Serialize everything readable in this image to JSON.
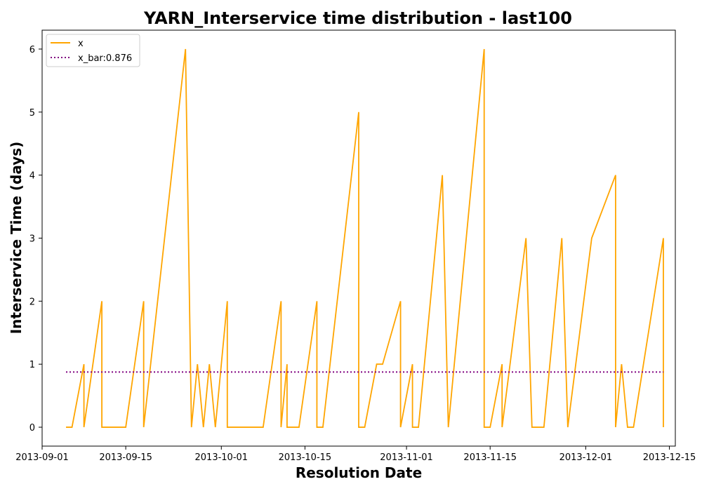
{
  "chart_data": {
    "type": "line",
    "title": "YARN_Interservice time distribution - last100",
    "xlabel": "Resolution Date",
    "ylabel": "Interservice Time (days)",
    "x_type": "date",
    "xlim": [
      "2013-09-01",
      "2013-12-16"
    ],
    "ylim": [
      -0.3,
      6.3
    ],
    "x_ticks": [
      "2013-09-01",
      "2013-09-15",
      "2013-10-01",
      "2013-10-15",
      "2013-11-01",
      "2013-11-15",
      "2013-12-01",
      "2013-12-15"
    ],
    "y_ticks": [
      0,
      1,
      2,
      3,
      4,
      5,
      6
    ],
    "grid": false,
    "legend_position": "top-left",
    "series": [
      {
        "name": "x",
        "color": "#FFA500",
        "style": "solid",
        "points": [
          [
            "2013-09-05",
            0
          ],
          [
            "2013-09-06",
            0
          ],
          [
            "2013-09-08",
            1
          ],
          [
            "2013-09-08",
            0
          ],
          [
            "2013-09-11",
            2
          ],
          [
            "2013-09-11",
            0
          ],
          [
            "2013-09-15",
            0
          ],
          [
            "2013-09-18",
            2
          ],
          [
            "2013-09-18",
            0
          ],
          [
            "2013-09-18",
            0
          ],
          [
            "2013-09-25",
            6
          ],
          [
            "2013-09-26",
            0
          ],
          [
            "2013-09-27",
            1
          ],
          [
            "2013-09-28",
            0
          ],
          [
            "2013-09-29",
            1
          ],
          [
            "2013-09-30",
            0
          ],
          [
            "2013-10-02",
            2
          ],
          [
            "2013-10-02",
            0
          ],
          [
            "2013-10-08",
            0
          ],
          [
            "2013-10-11",
            2
          ],
          [
            "2013-10-11",
            0
          ],
          [
            "2013-10-12",
            1
          ],
          [
            "2013-10-12",
            0
          ],
          [
            "2013-10-14",
            0
          ],
          [
            "2013-10-17",
            2
          ],
          [
            "2013-10-17",
            0
          ],
          [
            "2013-10-18",
            0
          ],
          [
            "2013-10-24",
            5
          ],
          [
            "2013-10-24",
            0
          ],
          [
            "2013-10-25",
            0
          ],
          [
            "2013-10-27",
            1
          ],
          [
            "2013-10-28",
            1
          ],
          [
            "2013-10-31",
            2
          ],
          [
            "2013-10-31",
            0
          ],
          [
            "2013-11-02",
            1
          ],
          [
            "2013-11-02",
            0
          ],
          [
            "2013-11-03",
            0
          ],
          [
            "2013-11-07",
            4
          ],
          [
            "2013-11-08",
            0
          ],
          [
            "2013-11-14",
            6
          ],
          [
            "2013-11-14",
            0
          ],
          [
            "2013-11-15",
            0
          ],
          [
            "2013-11-17",
            1
          ],
          [
            "2013-11-17",
            0
          ],
          [
            "2013-11-21",
            3
          ],
          [
            "2013-11-22",
            0
          ],
          [
            "2013-11-24",
            0
          ],
          [
            "2013-11-27",
            3
          ],
          [
            "2013-11-28",
            0
          ],
          [
            "2013-12-02",
            3
          ],
          [
            "2013-12-06",
            4
          ],
          [
            "2013-12-06",
            0
          ],
          [
            "2013-12-07",
            1
          ],
          [
            "2013-12-08",
            0
          ],
          [
            "2013-12-09",
            0
          ],
          [
            "2013-12-14",
            3
          ],
          [
            "2013-12-14",
            0
          ]
        ]
      },
      {
        "name": "x_bar:0.876",
        "color": "#800080",
        "style": "dotted",
        "points": [
          [
            "2013-09-05",
            0.876
          ],
          [
            "2013-12-14",
            0.876
          ]
        ]
      }
    ]
  }
}
